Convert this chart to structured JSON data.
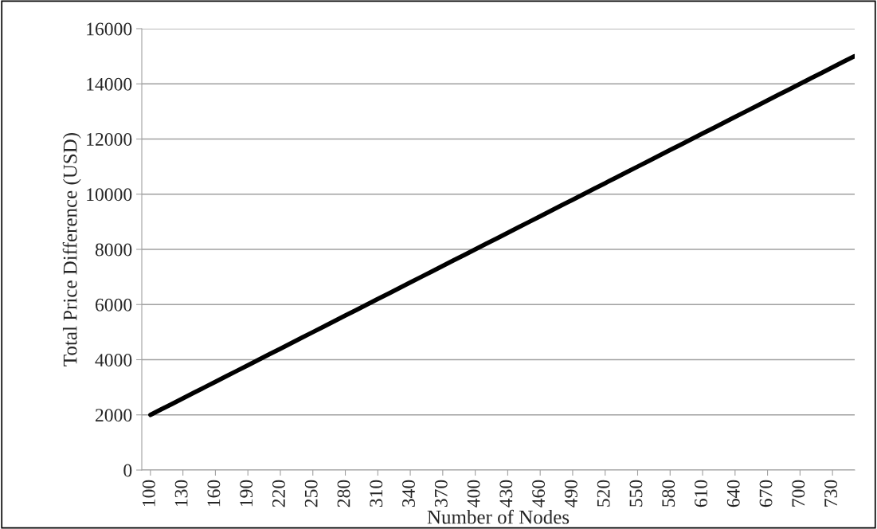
{
  "chart_data": {
    "type": "line",
    "xlabel": "Number of Nodes",
    "ylabel": "Total Price Difference (USD)",
    "categories": [
      "100",
      null,
      null,
      "130",
      null,
      null,
      "160",
      null,
      null,
      "190",
      null,
      null,
      "220",
      null,
      null,
      "250",
      null,
      null,
      "280",
      null,
      null,
      "310",
      null,
      null,
      "340",
      null,
      null,
      "370",
      null,
      null,
      "400",
      null,
      null,
      "430",
      null,
      null,
      "460",
      null,
      null,
      "490",
      null,
      null,
      "520",
      null,
      null,
      "550",
      null,
      null,
      "580",
      null,
      null,
      "610",
      null,
      null,
      "640",
      null,
      null,
      "670",
      null,
      null,
      "700",
      null,
      null,
      "730",
      null,
      null
    ],
    "series": [
      {
        "color": "#000000",
        "values": [
          2000,
          2200,
          2400,
          2600,
          2800,
          3000,
          3200,
          3400,
          3600,
          3800,
          4000,
          4200,
          4400,
          4600,
          4800,
          5000,
          5200,
          5400,
          5600,
          5800,
          6000,
          6200,
          6400,
          6600,
          6800,
          7000,
          7200,
          7400,
          7600,
          7800,
          8000,
          8200,
          8400,
          8600,
          8800,
          9000,
          9200,
          9400,
          9600,
          9800,
          10000,
          10200,
          10400,
          10600,
          10800,
          11000,
          11200,
          11400,
          11600,
          11800,
          12000,
          12200,
          12400,
          12600,
          12800,
          13000,
          13200,
          13400,
          13600,
          13800,
          14000,
          14200,
          14400,
          14600,
          14800,
          15000
        ]
      }
    ],
    "ylim": [
      0,
      16000
    ],
    "yticks": [
      0,
      2000,
      4000,
      6000,
      8000,
      10000,
      12000,
      14000,
      16000
    ],
    "grid": "y",
    "marker": "none",
    "line_style": "solid"
  }
}
